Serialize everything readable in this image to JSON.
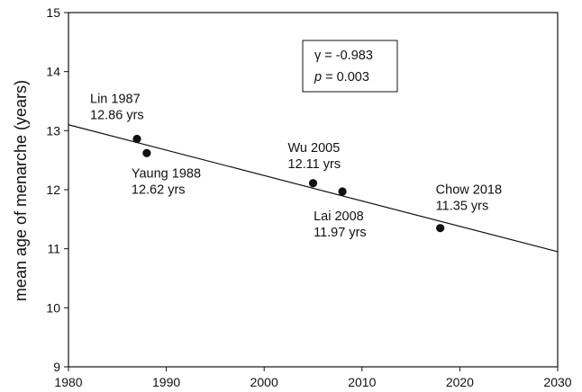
{
  "chart_data": {
    "type": "scatter",
    "title": "",
    "xlabel": "",
    "ylabel": "mean age of menarche (years)",
    "xlim": [
      1980,
      2030
    ],
    "ylim": [
      9,
      15
    ],
    "x_ticks": [
      1980,
      1990,
      2000,
      2010,
      2020,
      2030
    ],
    "y_ticks": [
      9,
      10,
      11,
      12,
      13,
      14,
      15
    ],
    "grid": false,
    "points": [
      {
        "x": 1987,
        "y": 12.86,
        "name": "Lin 1987",
        "value_label": "12.86 yrs"
      },
      {
        "x": 1988,
        "y": 12.62,
        "name": "Yaung 1988",
        "value_label": "12.62 yrs"
      },
      {
        "x": 2005,
        "y": 12.11,
        "name": "Wu 2005",
        "value_label": "12.11 yrs"
      },
      {
        "x": 2008,
        "y": 11.97,
        "name": "Lai 2008",
        "value_label": "11.97 yrs"
      },
      {
        "x": 2018,
        "y": 11.35,
        "name": "Chow 2018",
        "value_label": "11.35 yrs"
      }
    ],
    "trendline": {
      "x": [
        1980,
        2030
      ],
      "y": [
        13.1,
        10.95
      ]
    },
    "annotation": {
      "gamma_symbol": "γ",
      "gamma_value": " = -0.983",
      "p_symbol": "p",
      "p_value": " = 0.003"
    }
  }
}
